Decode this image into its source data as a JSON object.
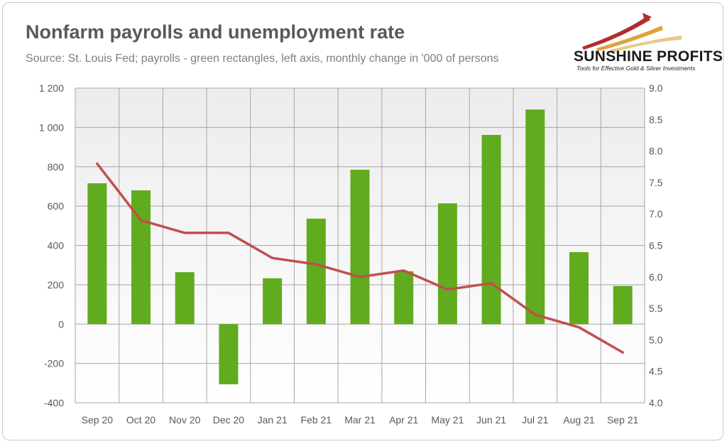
{
  "title": "Nonfarm payrolls and unemployment rate",
  "subtitle": "Source: St. Louis Fed; payrolls - green rectangles, left axis, monthly change in '000 of persons",
  "logo": {
    "name": "SUNSHINE PROFITS",
    "tagline": "Tools for Effective Gold & Silver Investments"
  },
  "colors": {
    "bars": "#61ab1e",
    "line": "#c0504d",
    "grid": "#a6a6a6",
    "plot_bg_top": "#ececec"
  },
  "chart_data": {
    "type": "bar",
    "categories": [
      "Sep 20",
      "Oct 20",
      "Nov 20",
      "Dec 20",
      "Jan 21",
      "Feb 21",
      "Mar 21",
      "Apr 21",
      "May 21",
      "Jun 21",
      "Jul 21",
      "Aug 21",
      "Sep 21"
    ],
    "series": [
      {
        "type": "bar",
        "axis": "left",
        "values": [
          716,
          680,
          264,
          -306,
          233,
          536,
          785,
          269,
          614,
          962,
          1091,
          366,
          194
        ]
      },
      {
        "type": "line",
        "axis": "right",
        "values": [
          7.8,
          6.9,
          6.7,
          6.7,
          6.3,
          6.2,
          6.0,
          6.1,
          5.8,
          5.9,
          5.4,
          5.2,
          4.8
        ]
      }
    ],
    "left_axis": {
      "ylim": [
        -400,
        1200
      ],
      "ticks": [
        -400,
        -200,
        0,
        200,
        400,
        600,
        800,
        1000,
        1200
      ],
      "tick_labels": [
        "-400",
        "-200",
        "0",
        "200",
        "400",
        "600",
        "800",
        "1 000",
        "1 200"
      ]
    },
    "right_axis": {
      "ylim": [
        4.0,
        9.0
      ],
      "ticks": [
        4.0,
        4.5,
        5.0,
        5.5,
        6.0,
        6.5,
        7.0,
        7.5,
        8.0,
        8.5,
        9.0
      ],
      "tick_labels": [
        "4.0",
        "4.5",
        "5.0",
        "5.5",
        "6.0",
        "6.5",
        "7.0",
        "7.5",
        "8.0",
        "8.5",
        "9.0"
      ]
    },
    "grid": true,
    "legend": "none"
  }
}
